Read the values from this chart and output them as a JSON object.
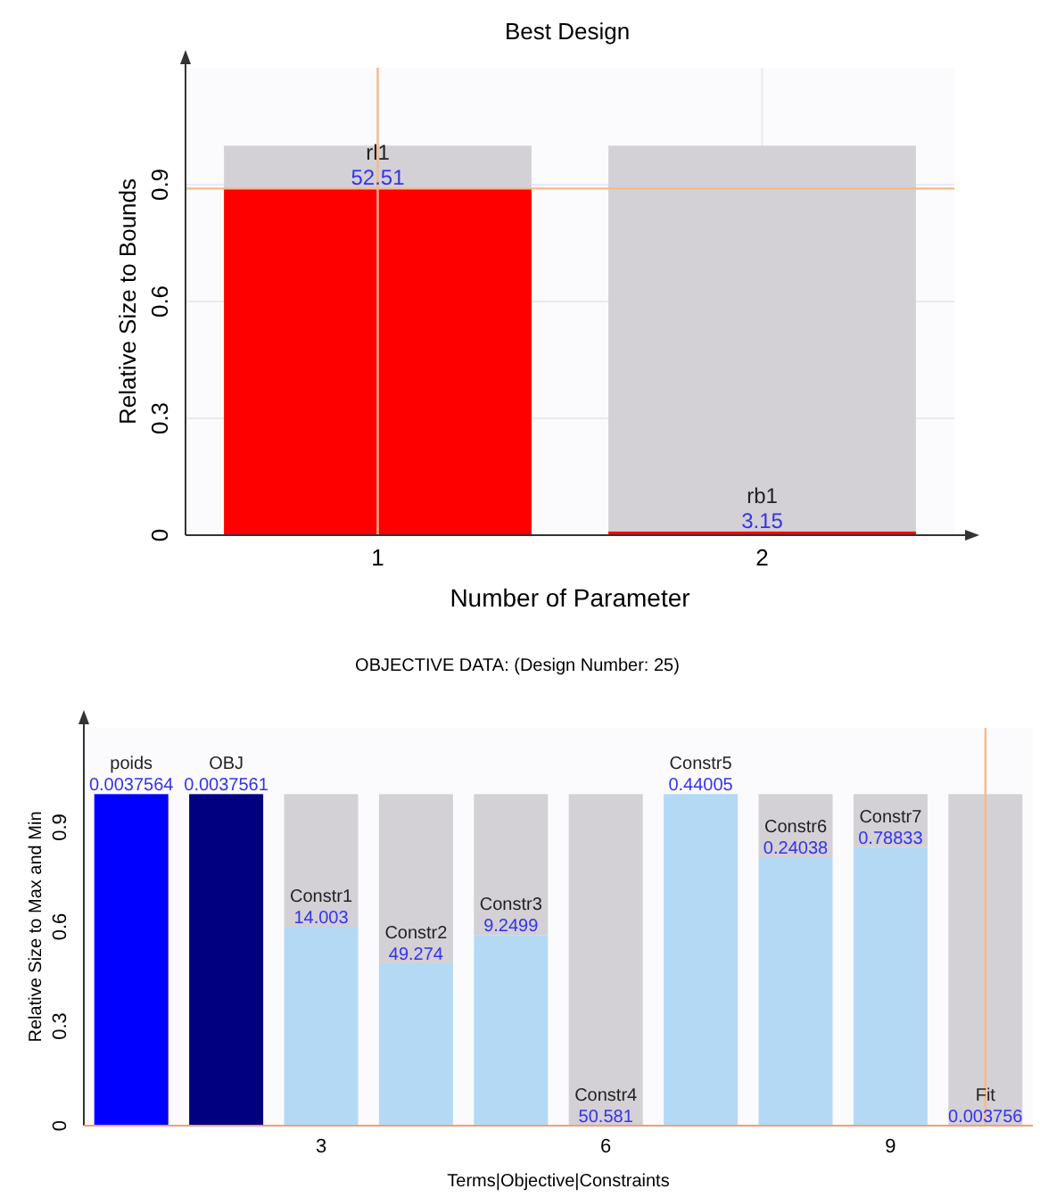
{
  "chart_data": [
    {
      "type": "bar",
      "title": "Best Design",
      "xlabel": "Number of Parameter",
      "ylabel": "Relative Size to Bounds",
      "x": [
        1,
        2
      ],
      "xlim": [
        0.5,
        2.5
      ],
      "xticks": [
        1,
        2
      ],
      "ylim": [
        0,
        1.2
      ],
      "yticks": [
        0,
        0.3,
        0.6,
        0.9
      ],
      "stacked": true,
      "grid": true,
      "series": [
        {
          "color": "#ff0000",
          "values": [
            0.89,
            0.01
          ]
        },
        {
          "color": "#d3d0d6",
          "values": [
            0.11,
            0.99
          ]
        }
      ],
      "annotations": [
        {
          "text": "rl1\n52.51",
          "x": 1,
          "y": 0.89
        },
        {
          "text": "rb1\n3.15",
          "x": 2,
          "y": 0.01
        }
      ],
      "ref_lines": [
        {
          "axis": "x",
          "value": 1,
          "color": "#f5b98a"
        },
        {
          "axis": "y",
          "value": 0.89,
          "color": "#f5b98a"
        }
      ]
    },
    {
      "type": "bar",
      "title": "OBJECTIVE DATA: (Design Number: 25)",
      "xlabel": "Terms|Objective|Constraints",
      "ylabel": "Relative Size to Max and Min",
      "x": [
        1,
        2,
        3,
        4,
        5,
        6,
        7,
        8,
        9,
        10
      ],
      "xlim": [
        0.5,
        10.5
      ],
      "xticks": [
        3,
        6,
        9
      ],
      "ylim": [
        0,
        1.2
      ],
      "yticks": [
        0,
        0.3,
        0.6,
        0.9
      ],
      "stacked": true,
      "grid": false,
      "series": [
        {
          "colors": [
            "#0000ff",
            "#000080",
            "#b3d9f5",
            "#b3d9f5",
            "#b3d9f5",
            "#b3d9f5",
            "#b3d9f5",
            "#b3d9f5",
            "#b3d9f5",
            "#b3d9f5"
          ],
          "values": [
            1,
            1,
            0.6,
            0.49,
            0.575,
            0,
            1,
            0.81,
            0.84,
            0
          ]
        },
        {
          "color": "#d3d0d6",
          "values": [
            null,
            null,
            0.4,
            0.51,
            0.425,
            1,
            null,
            0.19,
            0.16,
            1
          ]
        }
      ],
      "annotations": [
        {
          "text": "poids\n0.0037564",
          "x": 1,
          "y": 1
        },
        {
          "text": "OBJ\n0.0037561",
          "x": 2,
          "y": 1
        },
        {
          "text": "Constr1\n14.003",
          "x": 3,
          "y": 0.6
        },
        {
          "text": "Constr2\n49.274",
          "x": 4,
          "y": 0.49
        },
        {
          "text": "Constr3\n9.2499",
          "x": 5,
          "y": 0.575
        },
        {
          "text": "Constr4\n50.581",
          "x": 6,
          "y": 0
        },
        {
          "text": "Constr5\n0.44005",
          "x": 7,
          "y": 1
        },
        {
          "text": "Constr6\n0.24038",
          "x": 8,
          "y": 0.81
        },
        {
          "text": "Constr7\n0.78833",
          "x": 9,
          "y": 0.84
        },
        {
          "text": "Fit\n0.003756",
          "x": 10,
          "y": 0
        }
      ],
      "ref_lines": [
        {
          "axis": "x",
          "value": 10,
          "color": "#f5b98a"
        }
      ]
    }
  ]
}
